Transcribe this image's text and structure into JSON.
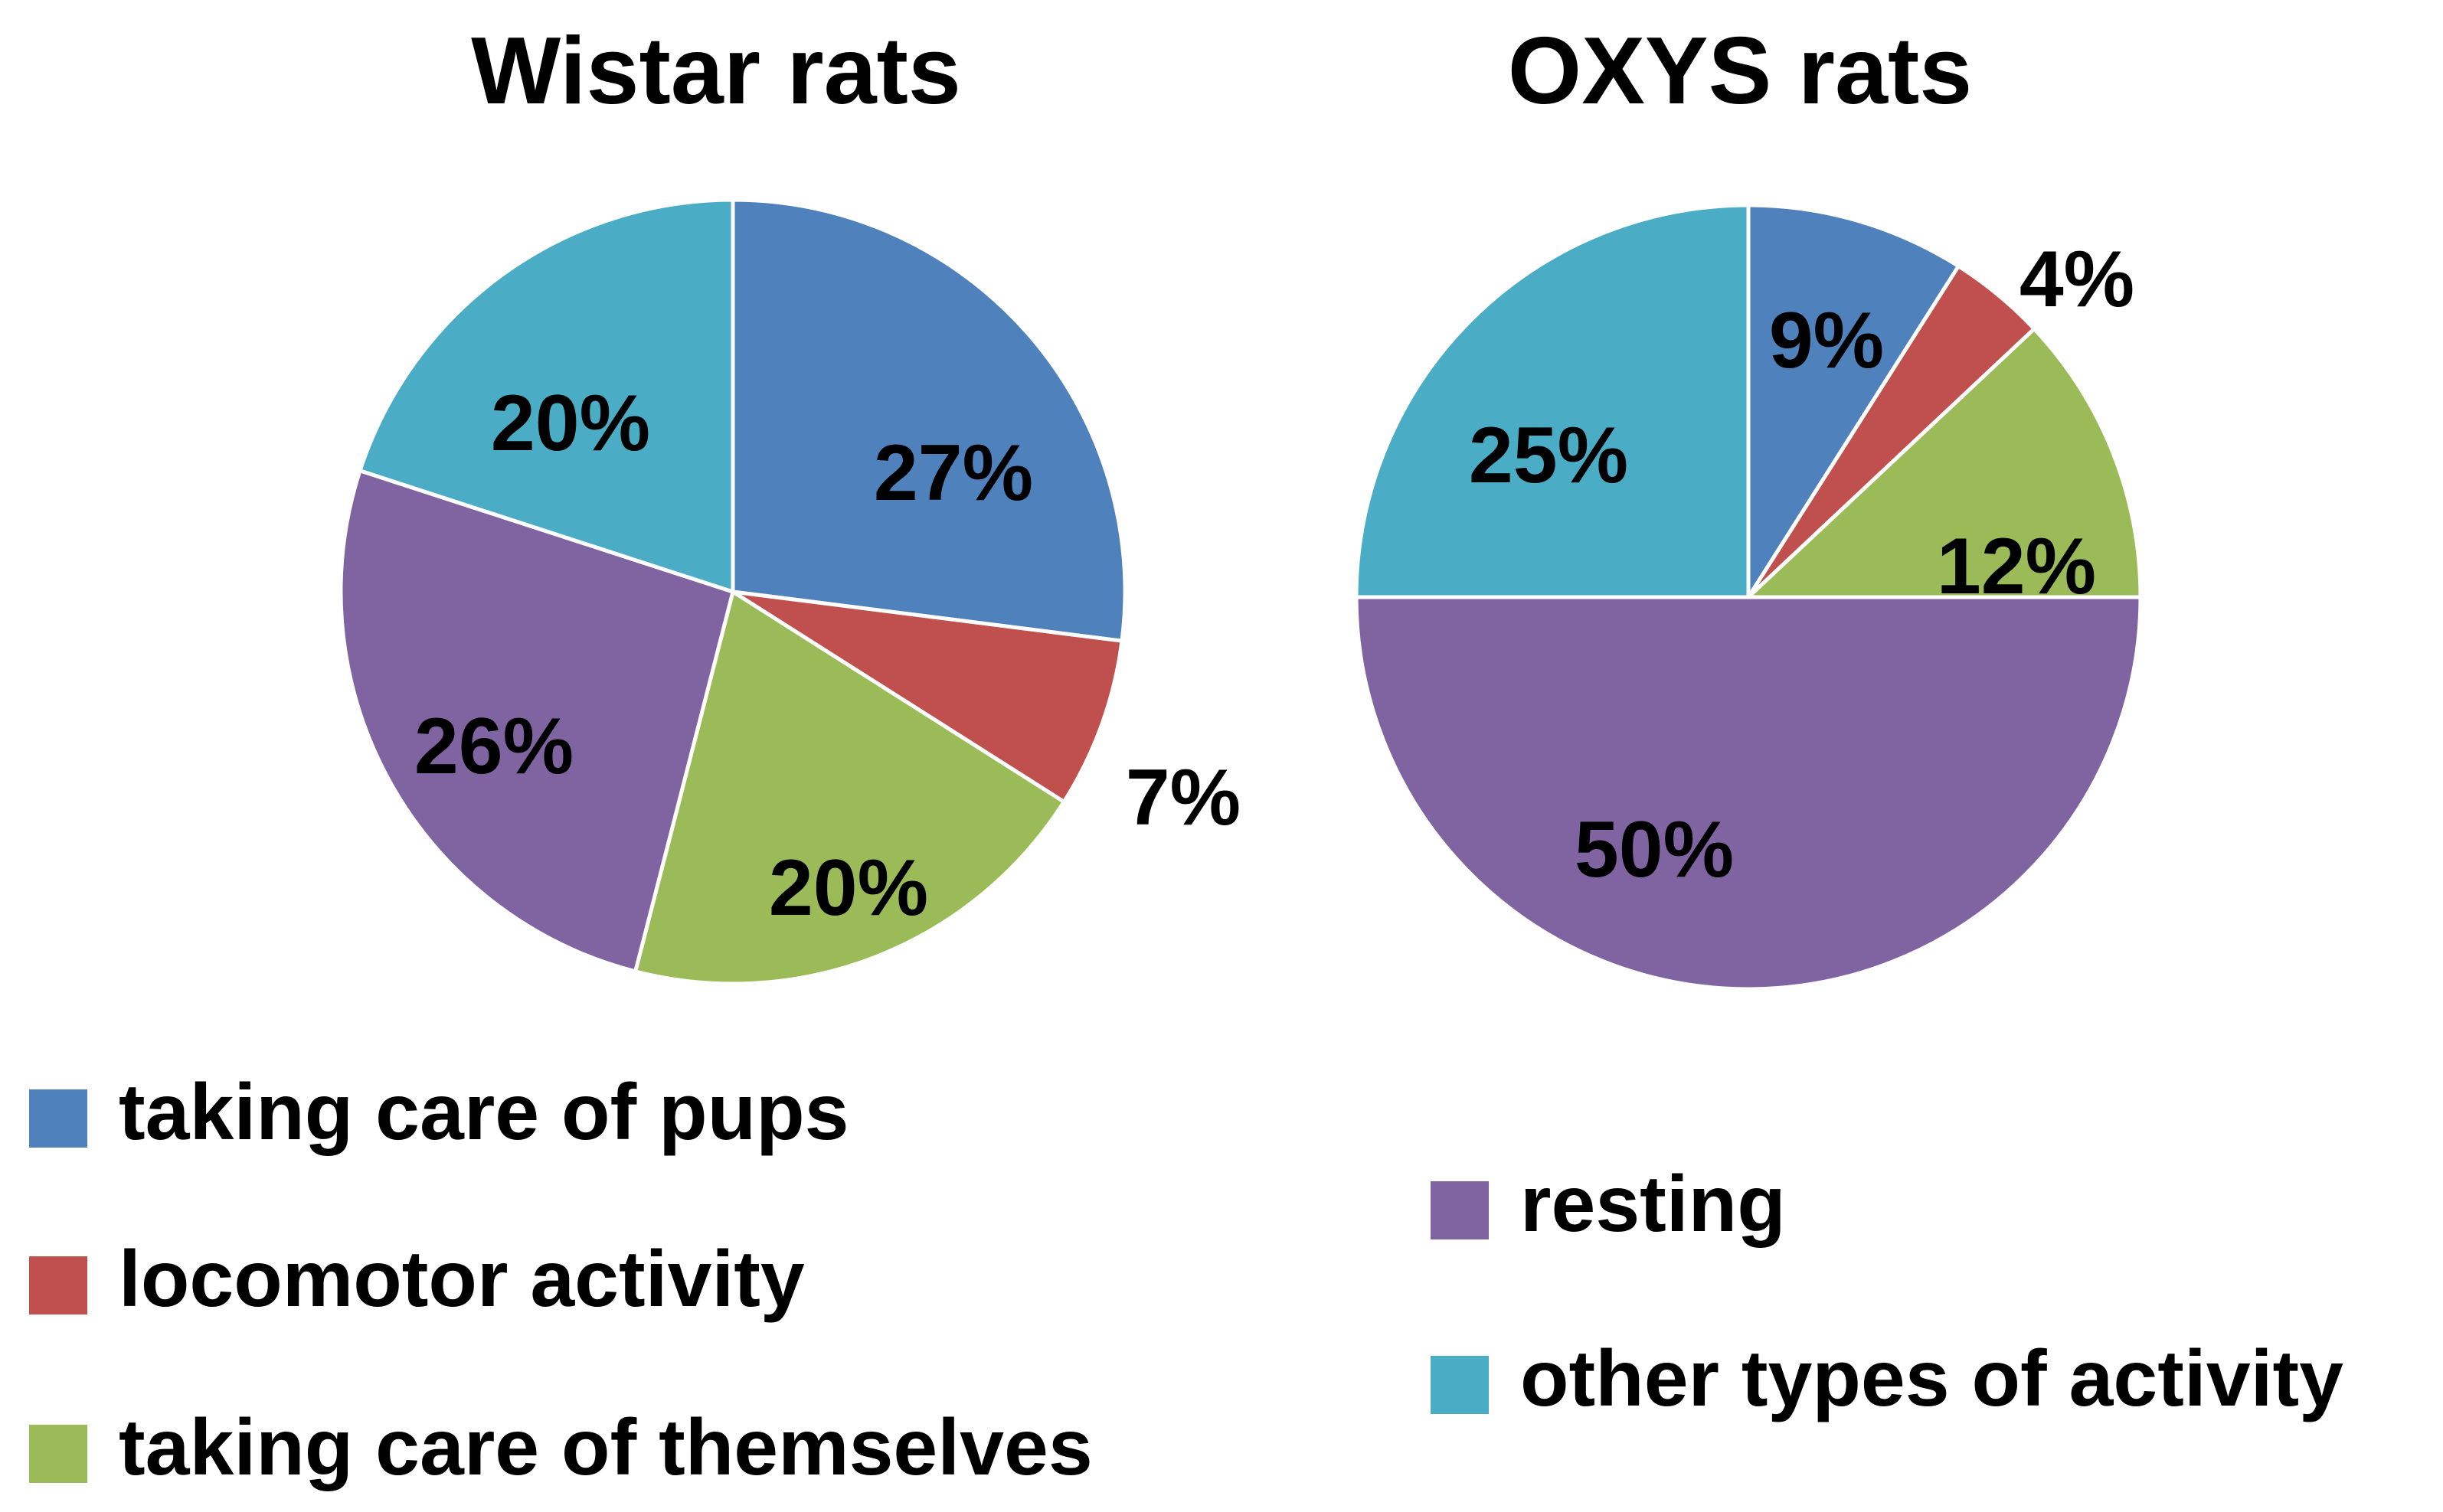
{
  "chart_data": [
    {
      "type": "pie",
      "title": "Wistar rats",
      "start_angle_deg": 0,
      "direction": "clockwise",
      "slices": [
        {
          "category": "taking care of pups",
          "value": 27,
          "label": "27%",
          "color": "#4F81BD"
        },
        {
          "category": "locomotor activity",
          "value": 7,
          "label": "7%",
          "color": "#C0504D"
        },
        {
          "category": "taking care of themselves",
          "value": 20,
          "label": "20%",
          "color": "#9BBB59"
        },
        {
          "category": "resting",
          "value": 26,
          "label": "26%",
          "color": "#8064A2"
        },
        {
          "category": "other types of activity",
          "value": 20,
          "label": "20%",
          "color": "#4BACC6"
        }
      ]
    },
    {
      "type": "pie",
      "title": "OXYS rats",
      "start_angle_deg": 0,
      "direction": "clockwise",
      "slices": [
        {
          "category": "taking care of pups",
          "value": 9,
          "label": "9%",
          "color": "#4F81BD"
        },
        {
          "category": "locomotor activity",
          "value": 4,
          "label": "4%",
          "color": "#C0504D"
        },
        {
          "category": "taking care of themselves",
          "value": 12,
          "label": "12%",
          "color": "#9BBB59"
        },
        {
          "category": "resting",
          "value": 50,
          "label": "50%",
          "color": "#8064A2"
        },
        {
          "category": "other types of activity",
          "value": 25,
          "label": "25%",
          "color": "#4BACC6"
        }
      ]
    }
  ],
  "legend": [
    {
      "label": "taking care of pups",
      "color": "#4F81BD"
    },
    {
      "label": "locomotor activity",
      "color": "#C0504D"
    },
    {
      "label": "taking care of themselves",
      "color": "#9BBB59"
    },
    {
      "label": "resting",
      "color": "#8064A2"
    },
    {
      "label": "other types of activity",
      "color": "#4BACC6"
    }
  ]
}
